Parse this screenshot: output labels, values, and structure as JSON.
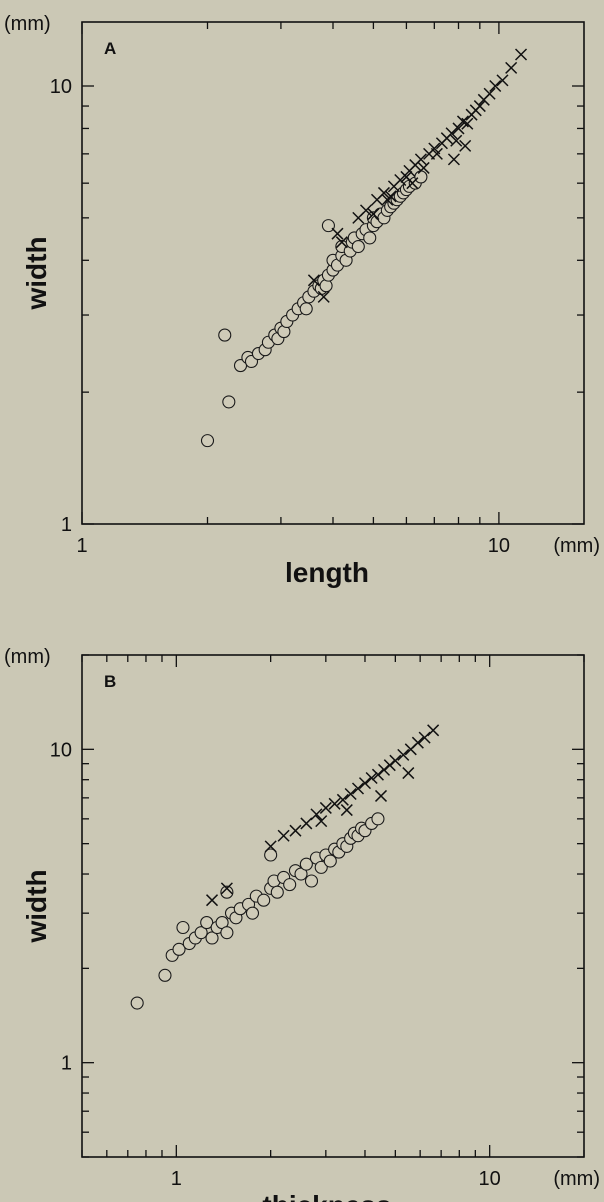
{
  "chart_data": [
    {
      "type": "scatter",
      "panel_label": "A",
      "xlabel": "length",
      "ylabel": "width",
      "x_unit": "(mm)",
      "y_unit": "(mm)",
      "xscale": "log",
      "yscale": "log",
      "xlim": [
        1,
        16
      ],
      "ylim": [
        1,
        14
      ],
      "xtick_labels": [
        {
          "value": 1,
          "label": "1"
        },
        {
          "value": 10,
          "label": "10"
        }
      ],
      "ytick_labels": [
        {
          "value": 1,
          "label": "1"
        },
        {
          "value": 10,
          "label": "10"
        }
      ],
      "series": [
        {
          "marker": "circle",
          "x": [
            2.0,
            2.2,
            2.25,
            2.4,
            2.5,
            2.55,
            2.65,
            2.75,
            2.8,
            2.9,
            2.95,
            3.0,
            3.05,
            3.1,
            3.2,
            3.3,
            3.4,
            3.45,
            3.5,
            3.6,
            3.7,
            3.75,
            3.8,
            3.85,
            3.9,
            4.0,
            4.0,
            4.1,
            4.2,
            4.2,
            4.3,
            4.4,
            4.45,
            4.5,
            4.6,
            4.7,
            4.8,
            4.9,
            5.0,
            5.0,
            5.1,
            5.2,
            5.3,
            5.4,
            5.5,
            5.6,
            5.7,
            5.8,
            5.9,
            6.0,
            6.1,
            6.3,
            6.5,
            3.9
          ],
          "y": [
            1.55,
            2.7,
            1.9,
            2.3,
            2.4,
            2.35,
            2.45,
            2.5,
            2.6,
            2.7,
            2.65,
            2.8,
            2.75,
            2.9,
            3.0,
            3.1,
            3.2,
            3.1,
            3.3,
            3.4,
            3.5,
            3.45,
            3.6,
            3.5,
            3.7,
            3.8,
            4.0,
            3.9,
            4.1,
            4.3,
            4.0,
            4.2,
            4.4,
            4.5,
            4.3,
            4.6,
            4.7,
            4.5,
            4.8,
            5.0,
            4.9,
            5.1,
            5.0,
            5.2,
            5.3,
            5.4,
            5.5,
            5.6,
            5.7,
            5.8,
            5.9,
            6.0,
            6.2,
            4.8
          ]
        },
        {
          "marker": "cross",
          "x": [
            3.6,
            3.8,
            4.1,
            4.2,
            4.6,
            4.8,
            5.0,
            5.1,
            5.3,
            5.5,
            5.6,
            5.8,
            6.0,
            6.1,
            6.3,
            6.5,
            6.6,
            6.8,
            7.0,
            7.1,
            7.3,
            7.5,
            7.7,
            7.9,
            8.0,
            8.2,
            8.4,
            8.6,
            8.8,
            9.0,
            9.2,
            9.5,
            9.8,
            10.2,
            10.7,
            11.3,
            7.8,
            8.3,
            6.2,
            5.4
          ],
          "y": [
            3.6,
            3.3,
            4.6,
            4.4,
            5.0,
            5.2,
            5.1,
            5.5,
            5.7,
            5.6,
            5.9,
            6.1,
            6.2,
            6.4,
            6.6,
            6.8,
            6.5,
            7.0,
            7.2,
            7.0,
            7.4,
            7.6,
            7.8,
            7.5,
            8.0,
            8.3,
            8.2,
            8.6,
            8.8,
            9.0,
            9.3,
            9.6,
            10.0,
            10.3,
            11.0,
            11.8,
            6.8,
            7.3,
            6.0,
            5.5
          ]
        }
      ]
    },
    {
      "type": "scatter",
      "panel_label": "B",
      "xlabel": "thickness",
      "ylabel": "width",
      "x_unit": "(mm)",
      "y_unit": "(mm)",
      "xscale": "log",
      "yscale": "log",
      "xlim": [
        0.5,
        20
      ],
      "ylim": [
        0.5,
        20
      ],
      "xtick_labels": [
        {
          "value": 1,
          "label": "1"
        },
        {
          "value": 10,
          "label": "10"
        }
      ],
      "ytick_labels": [
        {
          "value": 1,
          "label": "1"
        },
        {
          "value": 10,
          "label": "10"
        }
      ],
      "series": [
        {
          "marker": "circle",
          "x": [
            0.75,
            0.92,
            0.97,
            1.02,
            1.05,
            1.1,
            1.15,
            1.2,
            1.25,
            1.3,
            1.35,
            1.4,
            1.45,
            1.5,
            1.55,
            1.6,
            1.7,
            1.75,
            1.8,
            1.9,
            2.0,
            2.05,
            2.1,
            2.2,
            2.3,
            2.4,
            2.5,
            2.6,
            2.7,
            2.8,
            2.9,
            3.0,
            3.1,
            3.2,
            3.3,
            3.4,
            3.5,
            3.6,
            3.7,
            3.8,
            3.9,
            4.0,
            4.2,
            4.4,
            1.45,
            2.0
          ],
          "y": [
            1.55,
            1.9,
            2.2,
            2.3,
            2.7,
            2.4,
            2.5,
            2.6,
            2.8,
            2.5,
            2.7,
            2.8,
            2.6,
            3.0,
            2.9,
            3.1,
            3.2,
            3.0,
            3.4,
            3.3,
            3.6,
            3.8,
            3.5,
            3.9,
            3.7,
            4.1,
            4.0,
            4.3,
            3.8,
            4.5,
            4.2,
            4.6,
            4.4,
            4.8,
            4.7,
            5.0,
            4.9,
            5.2,
            5.4,
            5.3,
            5.6,
            5.5,
            5.8,
            6.0,
            3.5,
            4.6
          ]
        },
        {
          "marker": "cross",
          "x": [
            1.3,
            1.45,
            2.0,
            2.2,
            2.4,
            2.6,
            2.8,
            3.0,
            3.2,
            3.4,
            3.6,
            3.8,
            4.0,
            4.2,
            4.4,
            4.6,
            4.8,
            5.0,
            5.3,
            5.6,
            5.9,
            6.2,
            6.6,
            4.5,
            5.5,
            3.5,
            2.9
          ],
          "y": [
            3.3,
            3.6,
            4.9,
            5.3,
            5.5,
            5.8,
            6.2,
            6.5,
            6.7,
            6.9,
            7.2,
            7.5,
            7.8,
            8.1,
            8.3,
            8.6,
            8.9,
            9.2,
            9.6,
            10.0,
            10.5,
            10.9,
            11.5,
            7.1,
            8.4,
            6.4,
            5.9
          ]
        }
      ]
    }
  ]
}
